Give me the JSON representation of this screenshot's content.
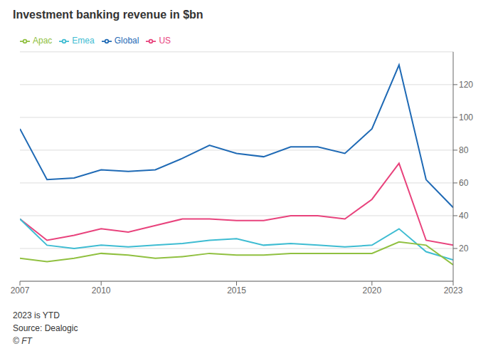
{
  "chart_data": {
    "type": "line",
    "title": "Investment banking revenue in $bn",
    "x": [
      2007,
      2008,
      2009,
      2010,
      2011,
      2012,
      2013,
      2014,
      2015,
      2016,
      2017,
      2018,
      2019,
      2020,
      2021,
      2022,
      2023
    ],
    "series": [
      {
        "name": "Global",
        "color": "#1f6ab5",
        "values": [
          93,
          62,
          63,
          68,
          67,
          68,
          75,
          83,
          78,
          76,
          82,
          82,
          78,
          93,
          132,
          62,
          45
        ]
      },
      {
        "name": "US",
        "color": "#e8427c",
        "values": [
          38,
          25,
          28,
          32,
          30,
          34,
          38,
          38,
          37,
          37,
          40,
          40,
          38,
          50,
          72,
          25,
          22
        ]
      },
      {
        "name": "Emea",
        "color": "#3ebcd2",
        "values": [
          38,
          22,
          20,
          22,
          21,
          22,
          23,
          25,
          26,
          22,
          23,
          22,
          21,
          22,
          32,
          18,
          13
        ]
      },
      {
        "name": "Apac",
        "color": "#90c040",
        "values": [
          14,
          12,
          14,
          17,
          16,
          14,
          15,
          17,
          16,
          16,
          17,
          17,
          17,
          17,
          24,
          22,
          10
        ]
      }
    ],
    "xlim": [
      2007,
      2023
    ],
    "xticks": [
      2007,
      2010,
      2015,
      2020,
      2023
    ],
    "ylim": [
      0,
      140
    ],
    "yticks": [
      20,
      40,
      60,
      80,
      100,
      120
    ],
    "grid": true,
    "legend": "upper left",
    "annotations": [
      "2023 is YTD",
      "Source: Dealogic",
      "© FT"
    ]
  }
}
